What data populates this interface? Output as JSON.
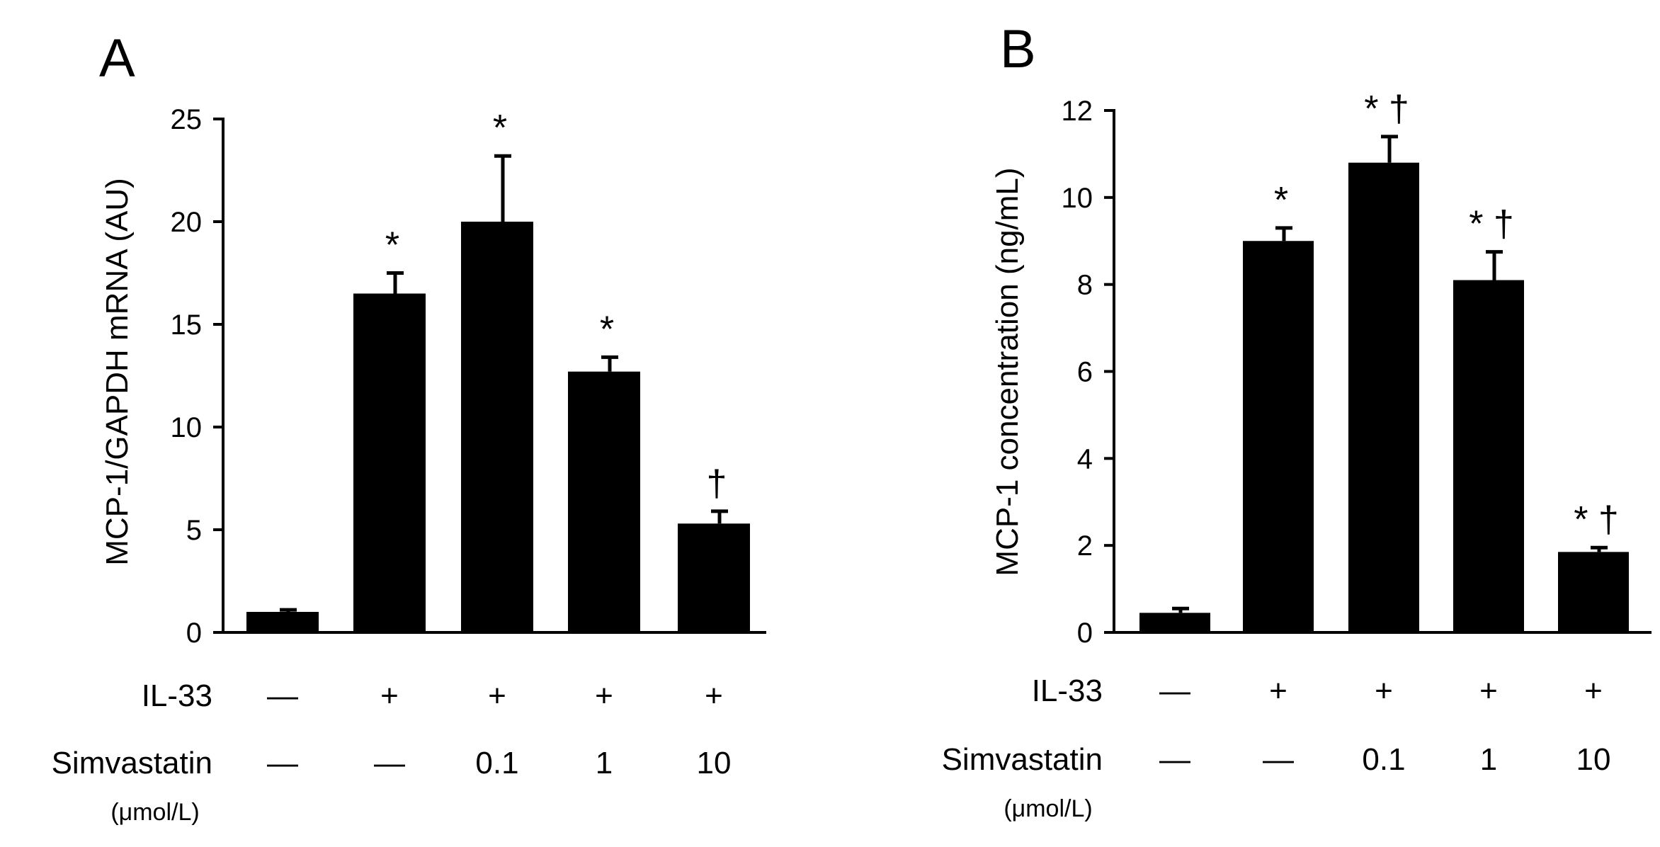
{
  "colors": {
    "bar": "#000000",
    "axis": "#000000",
    "background": "#ffffff"
  },
  "chart_data": [
    {
      "type": "bar",
      "panel_label": "A",
      "ylabel": "MCP-1/GAPDH mRNA (AU)",
      "ylim": [
        0,
        25
      ],
      "yticks": [
        0,
        5,
        10,
        15,
        20,
        25
      ],
      "ytick_labels": [
        "0",
        "5",
        "10",
        "15",
        "20",
        "25"
      ],
      "values": [
        1.0,
        16.5,
        20.0,
        12.7,
        5.3
      ],
      "errors": [
        0.1,
        1.0,
        3.2,
        0.7,
        0.6
      ],
      "significance": [
        "",
        "*",
        "*",
        "*",
        "†"
      ],
      "row_labels": {
        "il33": "IL-33",
        "simvastatin": "Simvastatin",
        "unit": "(μmol/L)"
      },
      "il33": [
        "—",
        "+",
        "+",
        "+",
        "+"
      ],
      "simvastatin": [
        "—",
        "—",
        "0.1",
        "1",
        "10"
      ]
    },
    {
      "type": "bar",
      "panel_label": "B",
      "ylabel": "MCP-1 concentration (ng/mL)",
      "ylim": [
        0,
        12
      ],
      "yticks": [
        0,
        2,
        4,
        6,
        8,
        10,
        12
      ],
      "ytick_labels": [
        "0",
        "2",
        "4",
        "6",
        "8",
        "10",
        "12"
      ],
      "values": [
        0.45,
        9.0,
        10.8,
        8.1,
        1.85
      ],
      "errors": [
        0.1,
        0.3,
        0.6,
        0.65,
        0.1
      ],
      "significance": [
        "",
        "*",
        "* †",
        "* †",
        "* †"
      ],
      "row_labels": {
        "il33": "IL-33",
        "simvastatin": "Simvastatin",
        "unit": "(μmol/L)"
      },
      "il33": [
        "—",
        "+",
        "+",
        "+",
        "+"
      ],
      "simvastatin": [
        "—",
        "—",
        "0.1",
        "1",
        "10"
      ]
    }
  ]
}
